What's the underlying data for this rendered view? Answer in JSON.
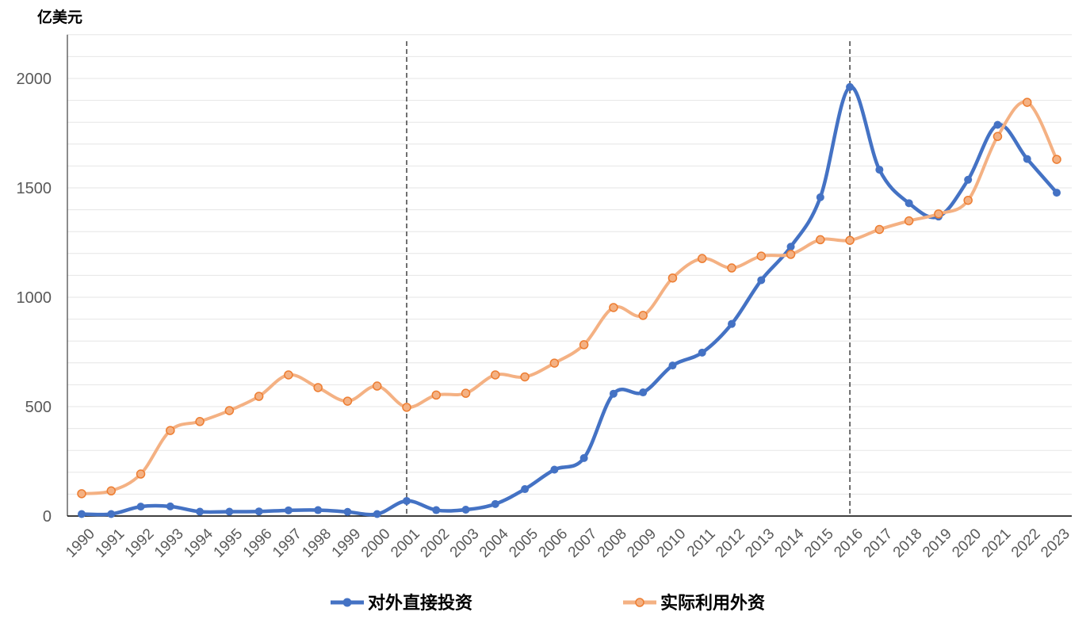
{
  "chart_data": {
    "type": "line",
    "title": "",
    "ylabel": "亿美元",
    "xlabel": "",
    "ylim": [
      0,
      2200
    ],
    "yticks": [
      0,
      500,
      1000,
      1500,
      2000
    ],
    "grid": true,
    "legend_position": "bottom",
    "x": [
      "1990",
      "1991",
      "1992",
      "1993",
      "1994",
      "1995",
      "1996",
      "1997",
      "1998",
      "1999",
      "2000",
      "2001",
      "2002",
      "2003",
      "2004",
      "2005",
      "2006",
      "2007",
      "2008",
      "2009",
      "2010",
      "2011",
      "2012",
      "2013",
      "2014",
      "2015",
      "2016",
      "2017",
      "2018",
      "2019",
      "2020",
      "2021",
      "2022",
      "2023"
    ],
    "reference_lines_x": [
      "2001",
      "2016"
    ],
    "series": [
      {
        "name": "对外直接投资",
        "color": "#4472C4",
        "values": [
          9,
          9,
          43,
          44,
          20,
          20,
          21,
          26,
          27,
          19,
          9,
          69,
          27,
          29,
          55,
          123,
          212,
          265,
          559,
          565,
          688,
          747,
          878,
          1078,
          1231,
          1457,
          1961,
          1583,
          1430,
          1369,
          1537,
          1788,
          1632,
          1478
        ]
      },
      {
        "name": "实际利用外资",
        "color": "#F4B183",
        "marker_color": "#ED7D31",
        "values": [
          102,
          115,
          192,
          391,
          432,
          482,
          547,
          645,
          587,
          525,
          594,
          497,
          553,
          561,
          645,
          636,
          699,
          783,
          953,
          917,
          1088,
          1177,
          1134,
          1188,
          1196,
          1263,
          1260,
          1310,
          1349,
          1381,
          1443,
          1735,
          1891,
          1630
        ]
      }
    ]
  }
}
